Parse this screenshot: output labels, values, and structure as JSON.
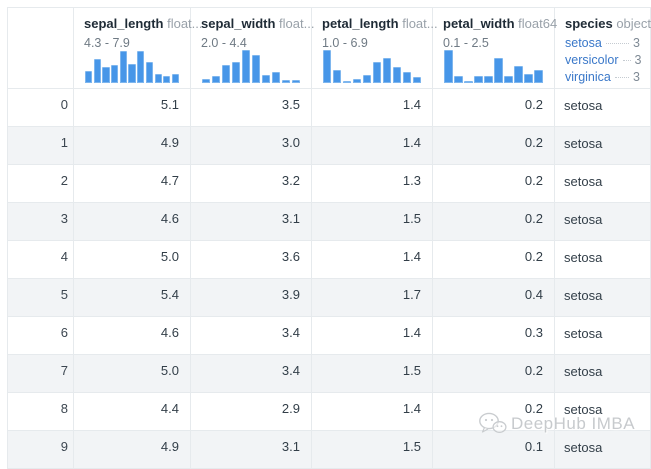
{
  "table": {
    "columns": [
      {
        "name": "sepal_length",
        "dtype": "float...",
        "range": "4.3 - 7.9",
        "histogram": [
          37,
          74,
          48,
          55,
          97,
          58,
          97,
          65,
          26,
          22,
          26
        ]
      },
      {
        "name": "sepal_width",
        "dtype": "float...",
        "range": "2.0 - 4.4",
        "histogram": [
          11,
          20,
          55,
          63,
          100,
          85,
          25,
          32,
          9,
          9
        ]
      },
      {
        "name": "petal_length",
        "dtype": "float...",
        "range": "1.0 - 6.9",
        "histogram": [
          100,
          38,
          5,
          12,
          24,
          65,
          76,
          47,
          33,
          18
        ]
      },
      {
        "name": "petal_width",
        "dtype": "float64",
        "range": "0.1 - 2.5",
        "histogram": [
          100,
          22,
          6,
          20,
          22,
          75,
          20,
          50,
          28,
          38
        ]
      },
      {
        "name": "species",
        "dtype": "object",
        "categories": [
          {
            "label": "setosa",
            "count": "3"
          },
          {
            "label": "versicolor",
            "count": "3"
          },
          {
            "label": "virginica",
            "count": "3"
          }
        ]
      }
    ],
    "rows": [
      {
        "index": "0",
        "values": [
          "5.1",
          "3.5",
          "1.4",
          "0.2",
          "setosa"
        ]
      },
      {
        "index": "1",
        "values": [
          "4.9",
          "3.0",
          "1.4",
          "0.2",
          "setosa"
        ]
      },
      {
        "index": "2",
        "values": [
          "4.7",
          "3.2",
          "1.3",
          "0.2",
          "setosa"
        ]
      },
      {
        "index": "3",
        "values": [
          "4.6",
          "3.1",
          "1.5",
          "0.2",
          "setosa"
        ]
      },
      {
        "index": "4",
        "values": [
          "5.0",
          "3.6",
          "1.4",
          "0.2",
          "setosa"
        ]
      },
      {
        "index": "5",
        "values": [
          "5.4",
          "3.9",
          "1.7",
          "0.4",
          "setosa"
        ]
      },
      {
        "index": "6",
        "values": [
          "4.6",
          "3.4",
          "1.4",
          "0.3",
          "setosa"
        ]
      },
      {
        "index": "7",
        "values": [
          "5.0",
          "3.4",
          "1.5",
          "0.2",
          "setosa"
        ]
      },
      {
        "index": "8",
        "values": [
          "4.4",
          "2.9",
          "1.4",
          "0.2",
          "setosa"
        ]
      },
      {
        "index": "9",
        "values": [
          "4.9",
          "3.1",
          "1.5",
          "0.1",
          "setosa"
        ]
      }
    ]
  },
  "watermark": {
    "text": "DeepHub IMBA"
  },
  "colors": {
    "accent_blue": "#4796e8",
    "bar_border": "#7eb6ee",
    "link_blue": "#3a78c9",
    "stripe": "#f2f4f6",
    "border": "#e6eaed",
    "text_dark": "#323e48",
    "text_gray": "#99a1a9",
    "text_range": "#6f7a84",
    "watermark_gray": "#c7cacd"
  }
}
